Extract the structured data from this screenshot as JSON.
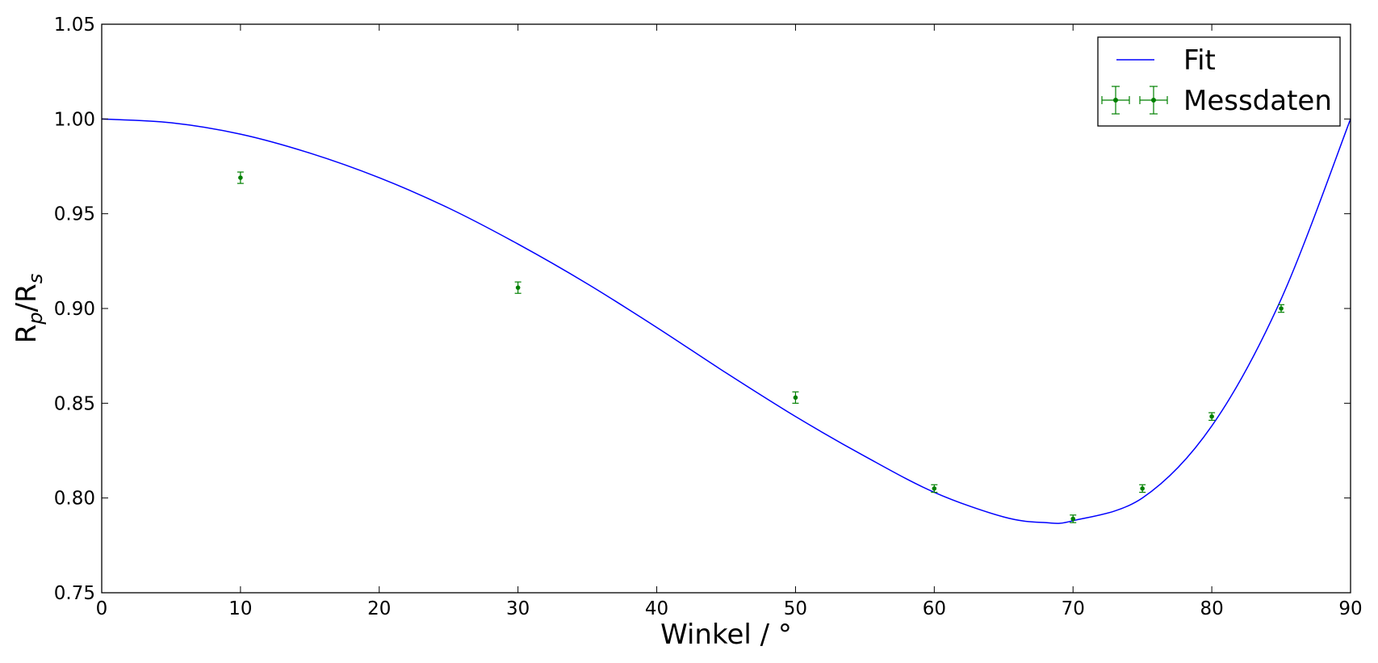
{
  "chart_data": {
    "type": "line",
    "title": "",
    "xlabel": "Winkel / °",
    "ylabel": "R_p/R_s",
    "ylabel_parts": {
      "base1": "R",
      "sub1": "p",
      "slash": "/R",
      "sub2": "s"
    },
    "xlim": [
      0,
      90
    ],
    "ylim": [
      0.75,
      1.05
    ],
    "x_ticks": [
      0,
      10,
      20,
      30,
      40,
      50,
      60,
      70,
      80,
      90
    ],
    "x_tick_labels": [
      "0",
      "10",
      "20",
      "30",
      "40",
      "50",
      "60",
      "70",
      "80",
      "90"
    ],
    "y_ticks": [
      0.75,
      0.8,
      0.85,
      0.9,
      0.95,
      1.0,
      1.05
    ],
    "y_tick_labels": [
      "0.75",
      "0.80",
      "0.85",
      "0.90",
      "0.95",
      "1.00",
      "1.05"
    ],
    "grid": false,
    "legend_position": "top-right",
    "series": [
      {
        "name": "Fit",
        "kind": "line",
        "color": "#0000ff",
        "x": [
          0,
          5,
          10,
          15,
          20,
          25,
          30,
          35,
          40,
          45,
          50,
          55,
          60,
          65,
          68,
          70,
          75,
          80,
          85,
          90
        ],
        "y": [
          1.0,
          0.998,
          0.992,
          0.982,
          0.969,
          0.953,
          0.934,
          0.913,
          0.89,
          0.866,
          0.843,
          0.822,
          0.803,
          0.79,
          0.787,
          0.788,
          0.8,
          0.838,
          0.905,
          1.0
        ]
      },
      {
        "name": "Messdaten",
        "kind": "errorbar",
        "color": "#008000",
        "x": [
          10,
          30,
          50,
          60,
          70,
          75,
          80,
          85
        ],
        "y": [
          0.969,
          0.911,
          0.853,
          0.805,
          0.789,
          0.805,
          0.843,
          0.9
        ],
        "yerr": [
          0.003,
          0.003,
          0.003,
          0.002,
          0.002,
          0.002,
          0.002,
          0.002
        ]
      }
    ]
  }
}
